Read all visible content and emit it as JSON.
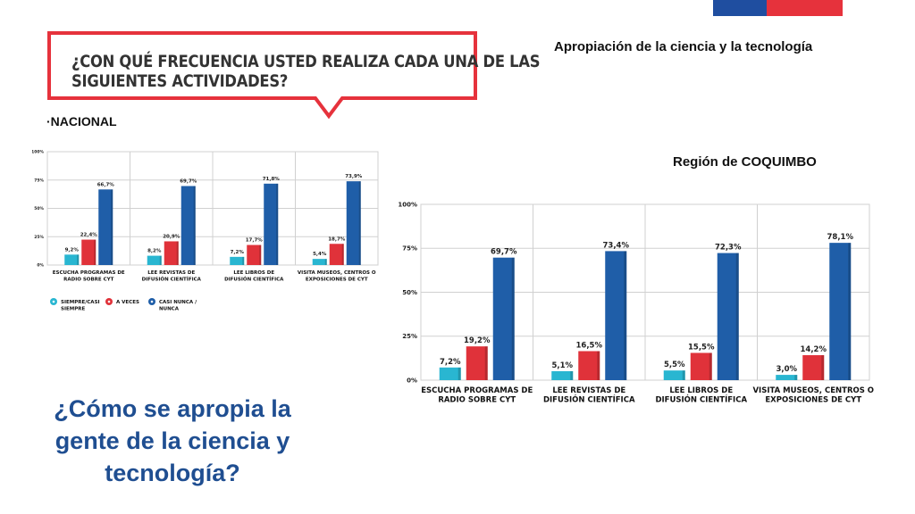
{
  "header": {
    "question_line1": "¿CON QUÉ FRECUENCIA USTED REALIZA CADA UNA DE LAS",
    "question_line2": "SIGUIENTES ACTIVIDADES?",
    "section_title": "Apropiación de la ciencia y la tecnología",
    "flag_colors": [
      "#1f4ea0",
      "#e6323c"
    ],
    "bubble_border_color": "#e6323c"
  },
  "nacional_label": "·NACIONAL",
  "region_label": "Región de COQUIMBO",
  "big_question": "¿Cómo se apropia la gente de la ciencia y tecnología?",
  "chart_data": [
    {
      "type": "bar",
      "ylim": [
        0,
        100
      ],
      "yticks": [
        "0%",
        "25%",
        "50%",
        "75%",
        "100%"
      ],
      "grid": true,
      "categories": [
        [
          "ESCUCHA PROGRAMAS DE",
          "RADIO SOBRE CYT"
        ],
        [
          "LEE REVISTAS DE",
          "DIFUSIÓN CIENTÍFICA"
        ],
        [
          "LEE LIBROS DE",
          "DIFUSIÓN CIENTÍFICA"
        ],
        [
          "VISITA MUSEOS, CENTROS O",
          "EXPOSICIONES DE CYT"
        ]
      ],
      "series": [
        {
          "name": "SIEMPRE/CASI SIEMPRE",
          "color": "#29b6d1",
          "values": [
            9.2,
            8.2,
            7.2,
            5.4
          ],
          "labels": [
            "9,2%",
            "8,2%",
            "7,2%",
            "5,4%"
          ]
        },
        {
          "name": "A VECES",
          "color": "#e0323a",
          "values": [
            22.4,
            20.9,
            17.7,
            18.7
          ],
          "labels": [
            "22,4%",
            "20,9%",
            "17,7%",
            "18,7%"
          ]
        },
        {
          "name": "CASI NUNCA / NUNCA",
          "color": "#1f5ea8",
          "values": [
            66.7,
            69.7,
            71.8,
            73.9
          ],
          "labels": [
            "66,7%",
            "69,7%",
            "71,8%",
            "73,9%"
          ]
        }
      ],
      "legend": {
        "position": "bottom",
        "entries": [
          {
            "line1": "SIEMPRE/CASI",
            "line2": "SIEMPRE"
          },
          {
            "line1": "A VECES",
            "line2": ""
          },
          {
            "line1": "CASI NUNCA /",
            "line2": "NUNCA"
          }
        ]
      }
    },
    {
      "type": "bar",
      "ylim": [
        0,
        100
      ],
      "yticks": [
        "0%",
        "25%",
        "50%",
        "75%",
        "100%"
      ],
      "grid": true,
      "categories": [
        [
          "ESCUCHA PROGRAMAS DE",
          "RADIO SOBRE CYT"
        ],
        [
          "LEE REVISTAS DE",
          "DIFUSIÓN CIENTÍFICA"
        ],
        [
          "LEE LIBROS DE",
          "DIFUSIÓN CIENTÍFICA"
        ],
        [
          "VISITA MUSEOS, CENTROS O",
          "EXPOSICIONES DE CYT"
        ]
      ],
      "series": [
        {
          "color": "#29b6d1",
          "values": [
            7.2,
            5.1,
            5.5,
            3.0
          ],
          "labels": [
            "7,2%",
            "5,1%",
            "5,5%",
            "3,0%"
          ]
        },
        {
          "color": "#e0323a",
          "values": [
            19.2,
            16.5,
            15.5,
            14.2
          ],
          "labels": [
            "19,2%",
            "16,5%",
            "15,5%",
            "14,2%"
          ]
        },
        {
          "color": "#1f5ea8",
          "values": [
            69.7,
            73.4,
            72.3,
            78.1
          ],
          "labels": [
            "69,7%",
            "73,4%",
            "72,3%",
            "78,1%"
          ]
        }
      ]
    }
  ]
}
